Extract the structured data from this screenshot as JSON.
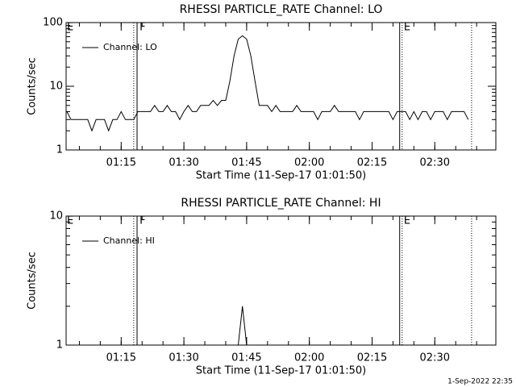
{
  "chart_data": [
    {
      "type": "line",
      "title": "RHESSI PARTICLE_RATE Channel: LO",
      "x_label": "Start Time (11-Sep-17 01:01:50)",
      "y_label": "Counts/sec",
      "log_y": true,
      "xlim": [
        61.83,
        164.6
      ],
      "ylim": [
        1,
        100
      ],
      "yticks": [
        1,
        10,
        100
      ],
      "xticks": [
        {
          "value": 75,
          "label": "01:15"
        },
        {
          "value": 90,
          "label": "01:30"
        },
        {
          "value": 105,
          "label": "01:45"
        },
        {
          "value": 120,
          "label": "02:00"
        },
        {
          "value": 135,
          "label": "02:15"
        },
        {
          "value": 150,
          "label": "02:30"
        }
      ],
      "vlines": [
        {
          "x": 78.0,
          "style": "dotted"
        },
        {
          "x": 78.8,
          "style": "solid"
        },
        {
          "x": 141.6,
          "style": "solid"
        },
        {
          "x": 142.2,
          "style": "dotted"
        },
        {
          "x": 158.8,
          "style": "dotted"
        }
      ],
      "annotations": [
        {
          "text": "E",
          "x": 61.83
        },
        {
          "text": "F",
          "x": 79.2
        },
        {
          "text": "E",
          "x": 142.4
        }
      ],
      "x": [
        62,
        63,
        64,
        65,
        66,
        67,
        68,
        69,
        70,
        71,
        72,
        73,
        74,
        75,
        76,
        77,
        78,
        79,
        80,
        81,
        82,
        83,
        84,
        85,
        86,
        87,
        88,
        89,
        90,
        91,
        92,
        93,
        94,
        95,
        96,
        97,
        98,
        99,
        100,
        101,
        102,
        103,
        104,
        105,
        106,
        107,
        108,
        109,
        110,
        111,
        112,
        113,
        114,
        115,
        116,
        117,
        118,
        119,
        120,
        121,
        122,
        123,
        124,
        125,
        126,
        127,
        128,
        129,
        130,
        131,
        132,
        133,
        134,
        135,
        136,
        137,
        138,
        139,
        140,
        141,
        142,
        143,
        144,
        145,
        146,
        147,
        148,
        149,
        150,
        151,
        152,
        153,
        154,
        155,
        156,
        157,
        158
      ],
      "series": [
        {
          "name": "Channel: LO",
          "color": "#000000",
          "values": [
            4,
            3,
            3,
            3,
            3,
            3,
            2,
            3,
            3,
            3,
            2,
            3,
            3,
            4,
            3,
            3,
            3,
            4,
            4,
            4,
            4,
            5,
            4,
            4,
            5,
            4,
            4,
            3,
            4,
            5,
            4,
            4,
            5,
            5,
            5,
            6,
            5,
            6,
            6,
            12,
            30,
            55,
            62,
            55,
            30,
            12,
            5,
            5,
            5,
            4,
            5,
            4,
            4,
            4,
            4,
            5,
            4,
            4,
            4,
            4,
            3,
            4,
            4,
            4,
            5,
            4,
            4,
            4,
            4,
            4,
            3,
            4,
            4,
            4,
            4,
            4,
            4,
            4,
            3,
            4,
            4,
            4,
            3,
            4,
            3,
            4,
            4,
            3,
            4,
            4,
            4,
            3,
            4,
            4,
            4,
            4,
            3
          ]
        }
      ]
    },
    {
      "type": "line",
      "title": "RHESSI PARTICLE_RATE Channel: HI",
      "x_label": "Start Time (11-Sep-17 01:01:50)",
      "y_label": "Counts/sec",
      "log_y": true,
      "xlim": [
        61.83,
        164.6
      ],
      "ylim": [
        1,
        10
      ],
      "yticks": [
        1,
        10
      ],
      "xticks": [
        {
          "value": 75,
          "label": "01:15"
        },
        {
          "value": 90,
          "label": "01:30"
        },
        {
          "value": 105,
          "label": "01:45"
        },
        {
          "value": 120,
          "label": "02:00"
        },
        {
          "value": 135,
          "label": "02:15"
        },
        {
          "value": 150,
          "label": "02:30"
        }
      ],
      "vlines": [
        {
          "x": 78.0,
          "style": "dotted"
        },
        {
          "x": 78.8,
          "style": "solid"
        },
        {
          "x": 141.6,
          "style": "solid"
        },
        {
          "x": 142.2,
          "style": "dotted"
        },
        {
          "x": 158.8,
          "style": "dotted"
        }
      ],
      "annotations": [
        {
          "text": "E",
          "x": 61.83
        },
        {
          "text": "F",
          "x": 79.2
        },
        {
          "text": "E",
          "x": 142.4
        }
      ],
      "x": [
        62,
        63,
        64,
        65,
        66,
        67,
        68,
        69,
        70,
        71,
        72,
        73,
        74,
        75,
        76,
        77,
        78,
        79,
        80,
        81,
        82,
        83,
        84,
        85,
        86,
        87,
        88,
        89,
        90,
        91,
        92,
        93,
        94,
        95,
        96,
        97,
        98,
        99,
        100,
        101,
        102,
        103,
        104,
        105,
        106,
        107,
        108,
        109,
        110,
        111,
        112,
        113,
        114,
        115,
        116,
        117,
        118,
        119,
        120,
        121,
        122,
        123,
        124,
        125,
        126,
        127,
        128,
        129,
        130,
        131,
        132,
        133,
        134,
        135,
        136,
        137,
        138,
        139,
        140,
        141,
        142,
        143,
        144,
        145,
        146,
        147,
        148,
        149,
        150,
        151,
        152,
        153,
        154,
        155,
        156,
        157,
        158
      ],
      "series": [
        {
          "name": "Channel: HI",
          "color": "#000000",
          "values": [
            1,
            1,
            1,
            1,
            1,
            1,
            1,
            1,
            1,
            1,
            1,
            1,
            1,
            1,
            1,
            1,
            1,
            1,
            1,
            1,
            1,
            1,
            1,
            1,
            1,
            1,
            1,
            1,
            1,
            1,
            1,
            1,
            1,
            1,
            1,
            1,
            1,
            1,
            1,
            1,
            1,
            1,
            2,
            1,
            1,
            1,
            1,
            1,
            1,
            1,
            1,
            1,
            1,
            1,
            1,
            1,
            1,
            1,
            1,
            1,
            1,
            1,
            1,
            1,
            1,
            1,
            1,
            1,
            1,
            1,
            1,
            1,
            1,
            1,
            1,
            1,
            1,
            1,
            1,
            1,
            1,
            1,
            1,
            1,
            1,
            1,
            1,
            1,
            1,
            1,
            1,
            1,
            1,
            1,
            1,
            1,
            1
          ]
        }
      ]
    }
  ],
  "footer": "1-Sep-2022 22:35"
}
